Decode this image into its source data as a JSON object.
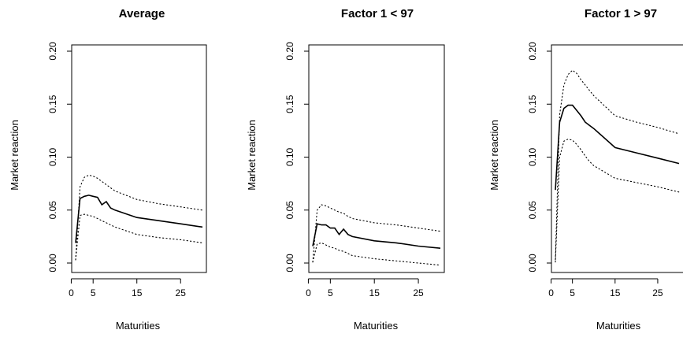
{
  "chart_data": [
    {
      "type": "line",
      "title": "Average",
      "xlabel": "Maturities",
      "ylabel": "Market reaction",
      "xlim": [
        1,
        30
      ],
      "ylim": [
        0.0,
        0.2
      ],
      "xticks": [
        "5",
        "15",
        "25"
      ],
      "xtick_values": [
        5,
        15,
        25
      ],
      "extra_xtick_labels": [
        "0"
      ],
      "yticks": [
        "0.00",
        "0.05",
        "0.10",
        "0.15",
        "0.20"
      ],
      "ytick_values": [
        0.0,
        0.05,
        0.1,
        0.15,
        0.2
      ],
      "grid": false,
      "series": [
        {
          "style": "solid",
          "x": [
            1,
            2,
            3,
            4,
            5,
            6,
            7,
            8,
            9,
            10,
            15,
            20,
            25,
            30
          ],
          "y": [
            0.019,
            0.061,
            0.063,
            0.064,
            0.063,
            0.062,
            0.055,
            0.058,
            0.052,
            0.05,
            0.043,
            0.04,
            0.037,
            0.034
          ]
        },
        {
          "style": "dotted",
          "x": [
            1,
            2,
            3,
            4,
            5,
            6,
            7,
            8,
            9,
            10,
            15,
            20,
            25,
            30
          ],
          "y": [
            0.003,
            0.072,
            0.081,
            0.083,
            0.082,
            0.08,
            0.077,
            0.074,
            0.071,
            0.068,
            0.06,
            0.056,
            0.053,
            0.05
          ]
        },
        {
          "style": "dotted",
          "x": [
            1,
            2,
            3,
            4,
            5,
            6,
            7,
            8,
            9,
            10,
            15,
            20,
            25,
            30
          ],
          "y": [
            0.003,
            0.045,
            0.046,
            0.045,
            0.044,
            0.042,
            0.04,
            0.038,
            0.036,
            0.034,
            0.027,
            0.024,
            0.022,
            0.019
          ]
        }
      ]
    },
    {
      "type": "line",
      "title": "Factor 1 < 97",
      "xlabel": "Maturities",
      "ylabel": "Market reaction",
      "xlim": [
        1,
        30
      ],
      "ylim": [
        0.0,
        0.2
      ],
      "xticks": [
        "5",
        "15",
        "25"
      ],
      "xtick_values": [
        5,
        15,
        25
      ],
      "extra_xtick_labels": [
        "0"
      ],
      "yticks": [
        "0.00",
        "0.05",
        "0.10",
        "0.15",
        "0.20"
      ],
      "ytick_values": [
        0.0,
        0.05,
        0.1,
        0.15,
        0.2
      ],
      "grid": false,
      "series": [
        {
          "style": "solid",
          "x": [
            1,
            2,
            3,
            4,
            5,
            6,
            7,
            8,
            9,
            10,
            15,
            20,
            25,
            30
          ],
          "y": [
            0.016,
            0.037,
            0.036,
            0.036,
            0.033,
            0.033,
            0.027,
            0.032,
            0.027,
            0.025,
            0.021,
            0.019,
            0.016,
            0.014
          ]
        },
        {
          "style": "dotted",
          "x": [
            1,
            2,
            3,
            4,
            5,
            6,
            7,
            8,
            9,
            10,
            15,
            20,
            25,
            30
          ],
          "y": [
            0.001,
            0.05,
            0.055,
            0.054,
            0.052,
            0.05,
            0.048,
            0.047,
            0.044,
            0.042,
            0.038,
            0.036,
            0.033,
            0.03
          ]
        },
        {
          "style": "dotted",
          "x": [
            1,
            2,
            3,
            4,
            5,
            6,
            7,
            8,
            9,
            10,
            15,
            20,
            25,
            30
          ],
          "y": [
            0.001,
            0.018,
            0.019,
            0.017,
            0.015,
            0.014,
            0.012,
            0.011,
            0.009,
            0.007,
            0.004,
            0.002,
            0.0,
            -0.002
          ]
        }
      ]
    },
    {
      "type": "line",
      "title": "Factor 1 > 97",
      "xlabel": "Maturities",
      "ylabel": "Market reaction",
      "xlim": [
        1,
        30
      ],
      "ylim": [
        0.0,
        0.2
      ],
      "xticks": [
        "5",
        "15",
        "25"
      ],
      "xtick_values": [
        5,
        15,
        25
      ],
      "extra_xtick_labels": [
        "0"
      ],
      "yticks": [
        "0.00",
        "0.05",
        "0.10",
        "0.15",
        "0.20"
      ],
      "ytick_values": [
        0.0,
        0.05,
        0.1,
        0.15,
        0.2
      ],
      "grid": false,
      "series": [
        {
          "style": "solid",
          "x": [
            1,
            2,
            3,
            4,
            5,
            6,
            7,
            8,
            9,
            10,
            15,
            20,
            25,
            30
          ],
          "y": [
            0.069,
            0.133,
            0.146,
            0.149,
            0.149,
            0.144,
            0.139,
            0.133,
            0.13,
            0.127,
            0.109,
            0.104,
            0.099,
            0.094
          ]
        },
        {
          "style": "dotted",
          "x": [
            1,
            2,
            3,
            4,
            5,
            6,
            7,
            8,
            9,
            10,
            15,
            20,
            25,
            30
          ],
          "y": [
            0.003,
            0.14,
            0.168,
            0.178,
            0.182,
            0.179,
            0.173,
            0.168,
            0.163,
            0.158,
            0.139,
            0.133,
            0.128,
            0.122
          ]
        },
        {
          "style": "dotted",
          "x": [
            1,
            2,
            3,
            4,
            5,
            6,
            7,
            8,
            9,
            10,
            15,
            20,
            25,
            30
          ],
          "y": [
            0.001,
            0.1,
            0.115,
            0.117,
            0.116,
            0.112,
            0.107,
            0.101,
            0.096,
            0.092,
            0.08,
            0.076,
            0.072,
            0.067
          ]
        }
      ]
    }
  ]
}
